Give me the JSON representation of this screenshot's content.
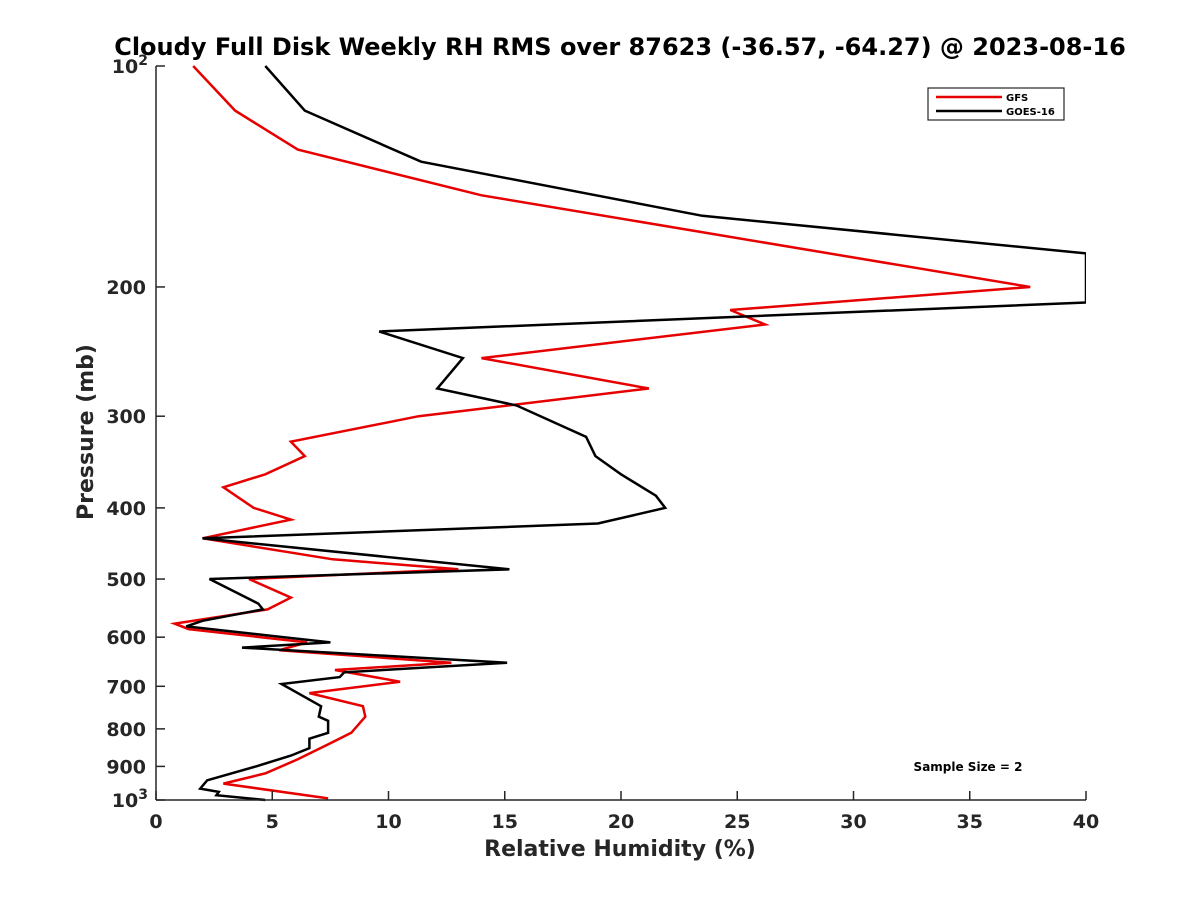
{
  "chart_data": {
    "type": "line",
    "title": "Cloudy Full Disk Weekly RH RMS over 87623 (-36.57, -64.27) @ 2023-08-16",
    "xlabel": "Relative Humidity (%)",
    "ylabel": "Pressure (mb)",
    "xlim": [
      0,
      40
    ],
    "ylim": [
      100,
      1000
    ],
    "y_scale": "log",
    "y_reversed": true,
    "x_ticks": [
      "0",
      "5",
      "10",
      "15",
      "20",
      "25",
      "30",
      "35",
      "40"
    ],
    "y_ticks": [
      {
        "value": 100,
        "label": "10",
        "sup": "2"
      },
      {
        "value": 200,
        "label": "200",
        "sup": ""
      },
      {
        "value": 300,
        "label": "300",
        "sup": ""
      },
      {
        "value": 400,
        "label": "400",
        "sup": ""
      },
      {
        "value": 500,
        "label": "500",
        "sup": ""
      },
      {
        "value": 600,
        "label": "600",
        "sup": ""
      },
      {
        "value": 700,
        "label": "700",
        "sup": ""
      },
      {
        "value": 800,
        "label": "800",
        "sup": ""
      },
      {
        "value": 900,
        "label": "900",
        "sup": ""
      },
      {
        "value": 1000,
        "label": "10",
        "sup": "3"
      }
    ],
    "grid": false,
    "legend": "top-right",
    "annotation": "Sample Size = 2",
    "series": [
      {
        "name": "GFS",
        "color": "#e60000",
        "points": [
          [
            1.6,
            100
          ],
          [
            3.4,
            115
          ],
          [
            6.1,
            130
          ],
          [
            14.0,
            150
          ],
          [
            37.6,
            200
          ],
          [
            24.7,
            215
          ],
          [
            26.2,
            225
          ],
          [
            14.0,
            250
          ],
          [
            21.2,
            275
          ],
          [
            11.3,
            300
          ],
          [
            5.8,
            325
          ],
          [
            6.4,
            340
          ],
          [
            4.7,
            360
          ],
          [
            2.9,
            375
          ],
          [
            4.2,
            400
          ],
          [
            5.8,
            415
          ],
          [
            2.0,
            440
          ],
          [
            7.6,
            470
          ],
          [
            13.0,
            485
          ],
          [
            4.0,
            500
          ],
          [
            5.8,
            530
          ],
          [
            4.8,
            550
          ],
          [
            0.8,
            575
          ],
          [
            1.4,
            585
          ],
          [
            6.5,
            610
          ],
          [
            5.3,
            625
          ],
          [
            12.7,
            650
          ],
          [
            7.7,
            665
          ],
          [
            10.5,
            690
          ],
          [
            6.6,
            715
          ],
          [
            8.9,
            745
          ],
          [
            9.0,
            770
          ],
          [
            8.4,
            810
          ],
          [
            7.4,
            840
          ],
          [
            6.1,
            880
          ],
          [
            4.7,
            920
          ],
          [
            2.9,
            950
          ],
          [
            7.4,
            995
          ]
        ]
      },
      {
        "name": "GOES-16",
        "color": "#000000",
        "points": [
          [
            4.7,
            100
          ],
          [
            6.4,
            115
          ],
          [
            11.4,
            135
          ],
          [
            23.5,
            160
          ],
          [
            40.0,
            180
          ],
          [
            40.0,
            210
          ],
          [
            9.6,
            230
          ],
          [
            13.2,
            250
          ],
          [
            12.1,
            275
          ],
          [
            15.5,
            290
          ],
          [
            18.5,
            320
          ],
          [
            18.9,
            340
          ],
          [
            20.0,
            360
          ],
          [
            21.5,
            385
          ],
          [
            21.9,
            400
          ],
          [
            19.0,
            420
          ],
          [
            2.0,
            440
          ],
          [
            15.2,
            485
          ],
          [
            2.3,
            500
          ],
          [
            4.4,
            540
          ],
          [
            4.6,
            550
          ],
          [
            2.0,
            570
          ],
          [
            1.3,
            580
          ],
          [
            7.5,
            610
          ],
          [
            3.7,
            620
          ],
          [
            15.1,
            650
          ],
          [
            8.1,
            670
          ],
          [
            7.9,
            680
          ],
          [
            5.4,
            695
          ],
          [
            7.1,
            745
          ],
          [
            7.0,
            770
          ],
          [
            7.4,
            780
          ],
          [
            7.4,
            810
          ],
          [
            6.6,
            825
          ],
          [
            6.6,
            850
          ],
          [
            5.8,
            870
          ],
          [
            4.3,
            900
          ],
          [
            2.2,
            940
          ],
          [
            1.9,
            965
          ],
          [
            2.7,
            975
          ],
          [
            2.6,
            985
          ],
          [
            4.7,
            1000
          ]
        ]
      }
    ]
  }
}
